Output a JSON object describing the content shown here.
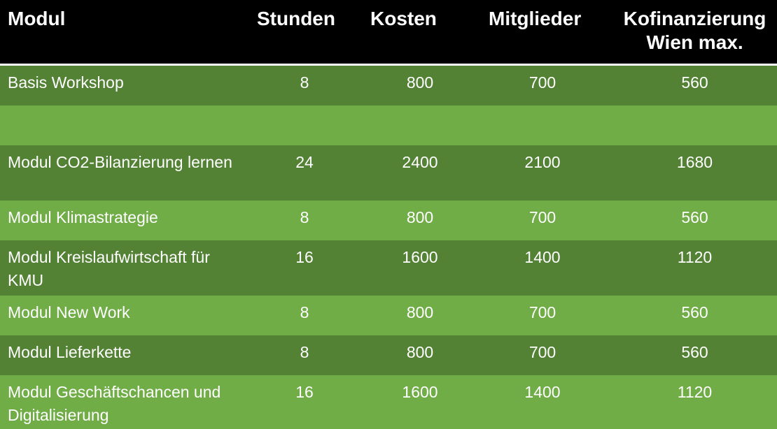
{
  "header": {
    "modul": "Modul",
    "stunden": "Stunden",
    "kosten": "Kosten",
    "mitglieder": "Mitglieder",
    "kofinanzierung_line1": "Kofinanzierung",
    "kofinanzierung_line2": "Wien max."
  },
  "rows": [
    {
      "modul": "Basis Workshop",
      "stunden": "8",
      "kosten": "800",
      "mitglieder": "700",
      "kofinanzierung": "560"
    },
    {
      "modul": "",
      "stunden": "",
      "kosten": "",
      "mitglieder": "",
      "kofinanzierung": ""
    },
    {
      "modul": "Modul CO2-Bilanzierung lernen",
      "stunden": "24",
      "kosten": "2400",
      "mitglieder": "2100",
      "kofinanzierung": "1680"
    },
    {
      "modul": "Modul Klimastrategie",
      "stunden": "8",
      "kosten": "800",
      "mitglieder": "700",
      "kofinanzierung": "560"
    },
    {
      "modul": "Modul Kreislaufwirtschaft für KMU",
      "stunden": "16",
      "kosten": "1600",
      "mitglieder": "1400",
      "kofinanzierung": "1120"
    },
    {
      "modul": "Modul New Work",
      "stunden": "8",
      "kosten": "800",
      "mitglieder": "700",
      "kofinanzierung": "560"
    },
    {
      "modul": "Modul Lieferkette",
      "stunden": "8",
      "kosten": "800",
      "mitglieder": "700",
      "kofinanzierung": "560"
    },
    {
      "modul": "Modul Geschäftschancen und Digitalisierung",
      "stunden": "16",
      "kosten": "1600",
      "mitglieder": "1400",
      "kofinanzierung": "1120"
    }
  ],
  "colors": {
    "header_bg": "#000000",
    "row_dark": "#548235",
    "row_light": "#70ad47",
    "text": "#ffffff"
  }
}
